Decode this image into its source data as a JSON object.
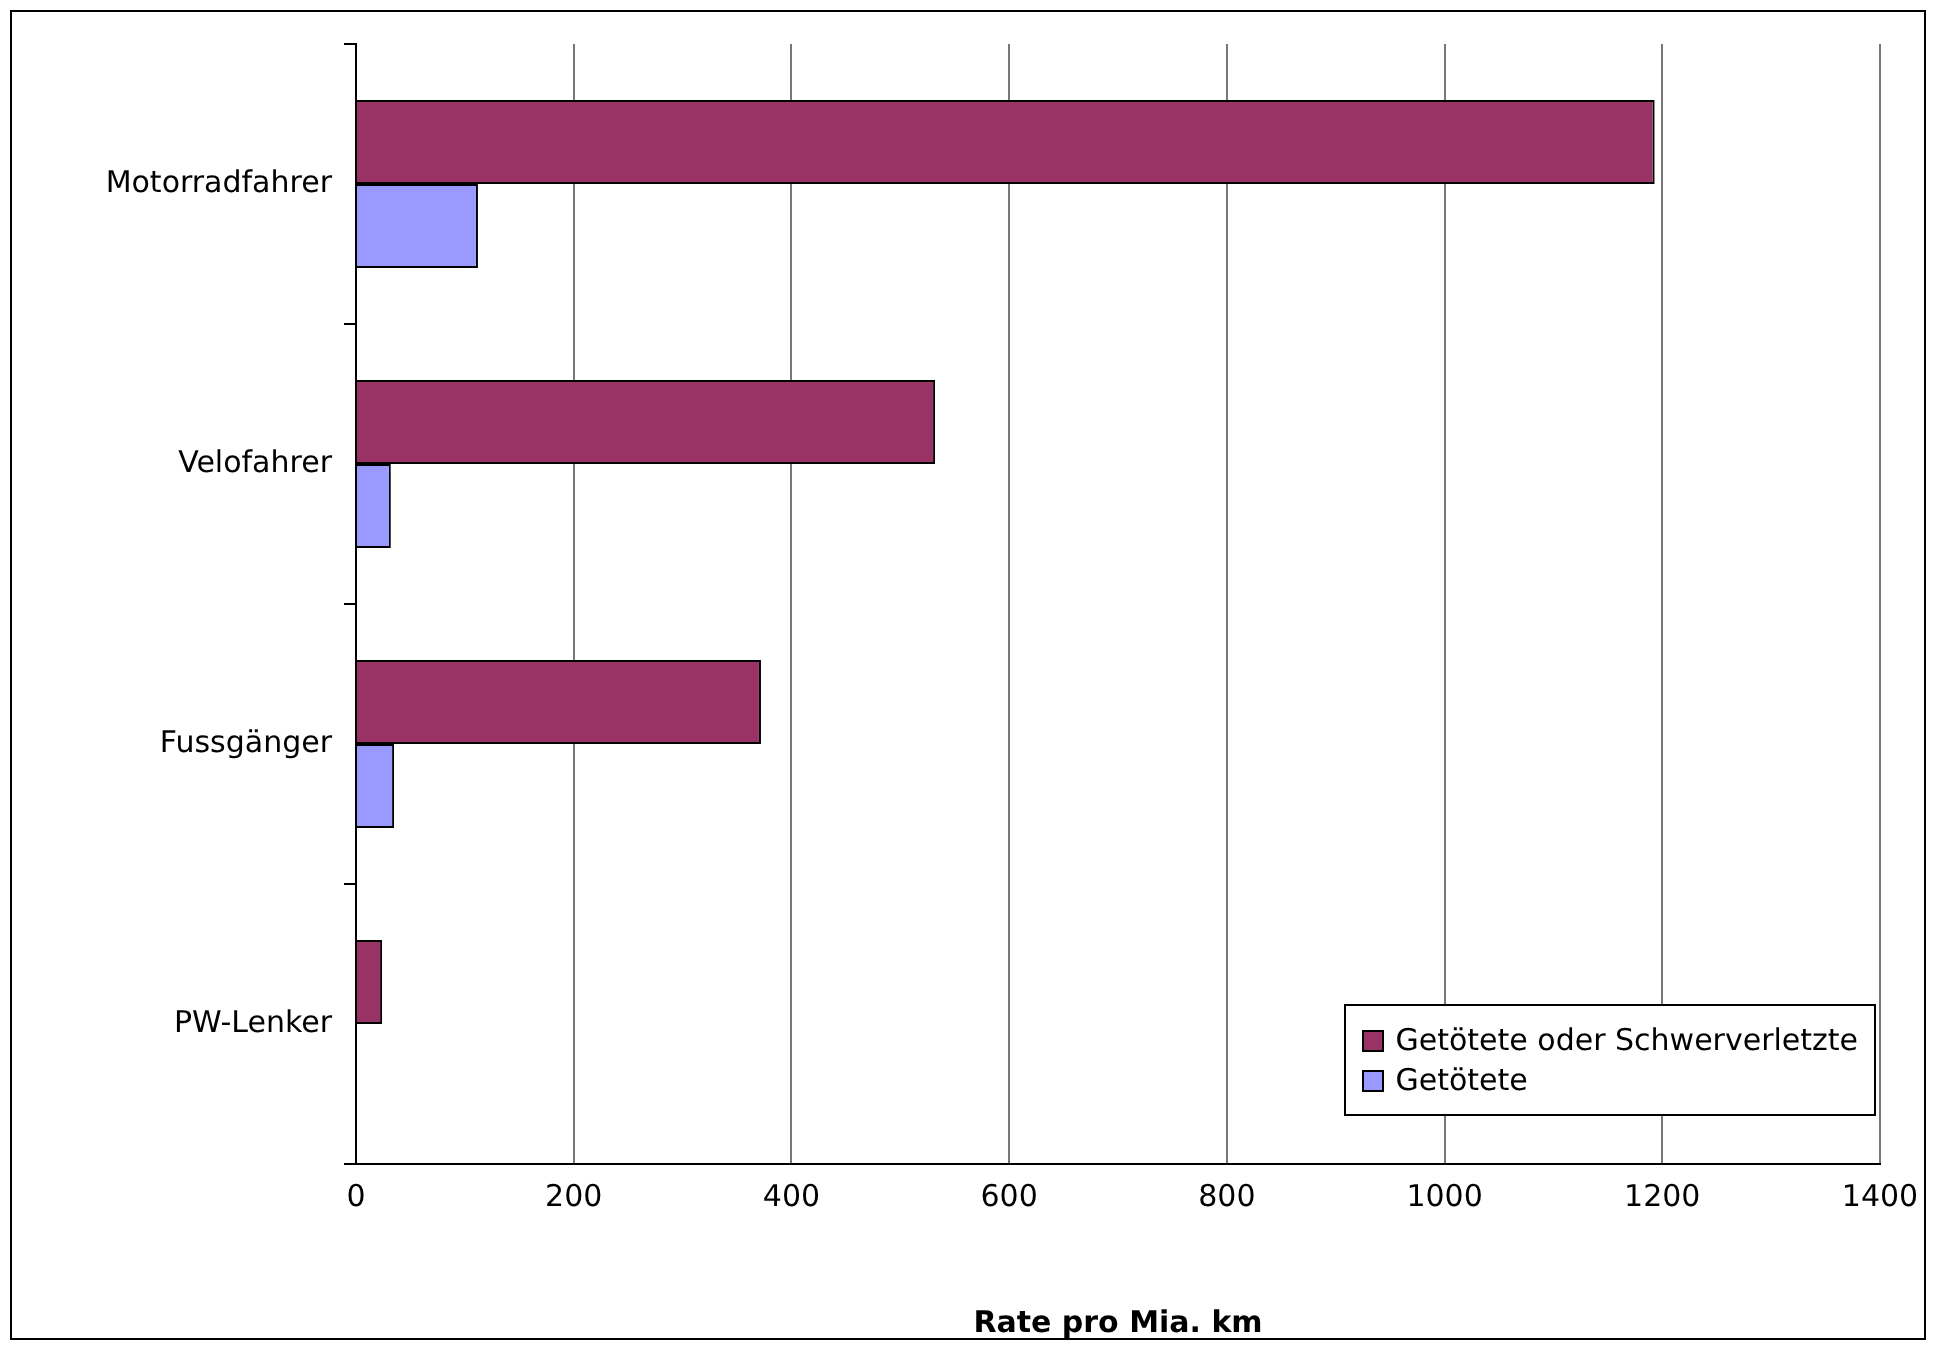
{
  "chart_data": {
    "type": "bar",
    "orientation": "horizontal",
    "xlabel": "Rate pro Mia. km",
    "categories": [
      "Motorradfahrer",
      "Velofahrer",
      "Fussgänger",
      "PW-Lenker"
    ],
    "series": [
      {
        "name": "Getötete oder Schwerverletzte",
        "color": "#993366",
        "values": [
          1193,
          532,
          372,
          24
        ]
      },
      {
        "name": "Getötete",
        "color": "#9999ff",
        "values": [
          112,
          32,
          35,
          0
        ]
      }
    ],
    "xlim": [
      0,
      1400
    ],
    "xticks": [
      0,
      200,
      400,
      600,
      800,
      1000,
      1200,
      1400
    ],
    "grid": "x",
    "legend": "bottom right"
  }
}
